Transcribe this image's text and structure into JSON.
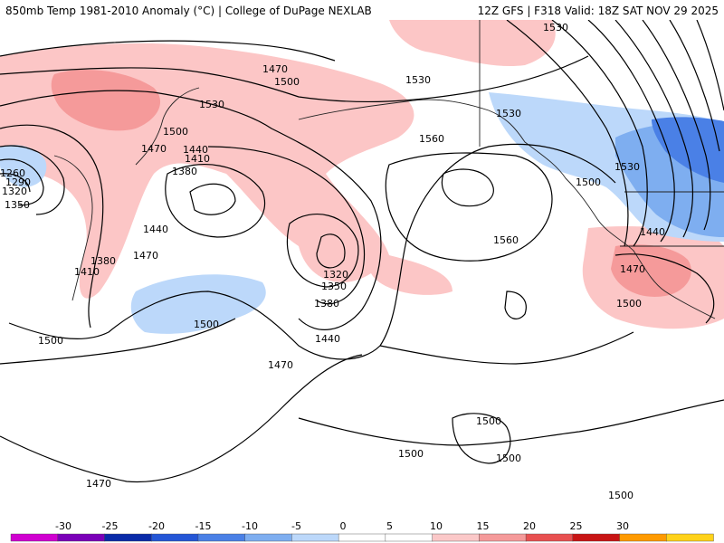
{
  "header": {
    "left_title": "850mb Temp 1981-2010 Anomaly (°C) | College of DuPage NEXLAB",
    "right_title": "12Z GFS | F318 Valid: 18Z SAT NOV 29 2025"
  },
  "contour_labels": [
    {
      "text": "1530"
    },
    {
      "text": "1470"
    },
    {
      "text": "1500"
    },
    {
      "text": "1530"
    },
    {
      "text": "1530"
    },
    {
      "text": "1560"
    },
    {
      "text": "1500"
    },
    {
      "text": "1440"
    },
    {
      "text": "1410"
    },
    {
      "text": "1380"
    },
    {
      "text": "1470"
    },
    {
      "text": "1440"
    },
    {
      "text": "1380"
    },
    {
      "text": "1410"
    },
    {
      "text": "1470"
    },
    {
      "text": "1320"
    },
    {
      "text": "1350"
    },
    {
      "text": "1380"
    },
    {
      "text": "1260"
    },
    {
      "text": "1290"
    },
    {
      "text": "1320"
    },
    {
      "text": "1350"
    },
    {
      "text": "1500"
    },
    {
      "text": "1500"
    },
    {
      "text": "1470"
    },
    {
      "text": "1440"
    },
    {
      "text": "1560"
    },
    {
      "text": "1530"
    },
    {
      "text": "1530"
    },
    {
      "text": "1500"
    },
    {
      "text": "1440"
    },
    {
      "text": "1470"
    },
    {
      "text": "1500"
    },
    {
      "text": "1500"
    },
    {
      "text": "1500"
    },
    {
      "text": "1500"
    },
    {
      "text": "1470"
    },
    {
      "text": "1500"
    }
  ],
  "colorbar": {
    "ticks": [
      "-30",
      "-25",
      "-20",
      "-15",
      "-10",
      "-5",
      "0",
      "5",
      "10",
      "15",
      "20",
      "25",
      "30"
    ],
    "colors": [
      "#d000d0",
      "#7a00b8",
      "#0a2aa8",
      "#2456d6",
      "#4a80e6",
      "#7eaef0",
      "#bcd8fa",
      "#ffffff",
      "#ffffff",
      "#fbc8c8",
      "#f59a9a",
      "#e85050",
      "#c81414",
      "#ff9a00",
      "#ffd21a"
    ]
  }
}
